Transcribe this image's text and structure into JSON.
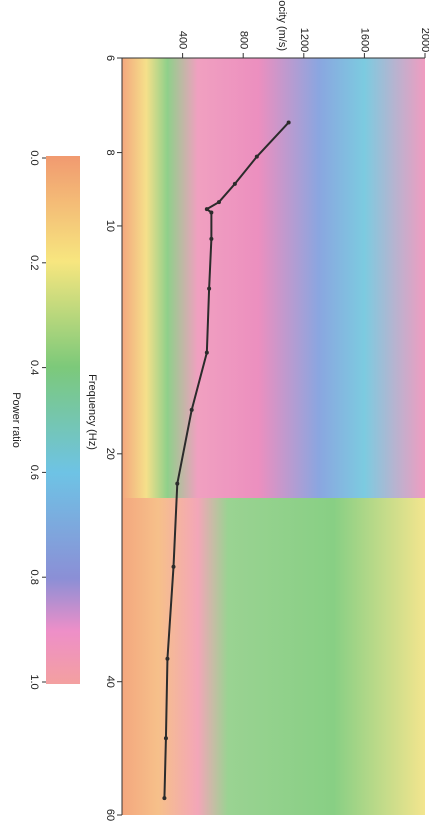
{
  "chart_data": {
    "type": "line",
    "xlabel": "Frequency (Hz)",
    "ylabel": "Velocity (m/s)",
    "xlim": [
      6,
      60
    ],
    "xscale": "log",
    "xticks": [
      6,
      8,
      10,
      20,
      40,
      60
    ],
    "ylim": [
      0,
      2000
    ],
    "yticks": [
      400,
      800,
      1200,
      1600,
      2000
    ],
    "series": [
      {
        "color": "#2b2b2b",
        "x": [
          7.3,
          8.1,
          8.8,
          9.3,
          9.5,
          9.6,
          10.4,
          12.1,
          14.7,
          17.5,
          21.9,
          28.2,
          37.3,
          47.5,
          57
        ],
        "values": [
          1100,
          890,
          745,
          640,
          560,
          590,
          590,
          575,
          560,
          460,
          365,
          340,
          300,
          290,
          280
        ]
      }
    ],
    "colorbar": {
      "label": "Power ratio",
      "lim": [
        0,
        1
      ],
      "ticks": [
        {
          "value": 0,
          "label": "0.0"
        },
        0.2,
        0.4,
        0.6,
        0.8,
        {
          "value": 1,
          "label": "1.0"
        }
      ]
    }
  }
}
